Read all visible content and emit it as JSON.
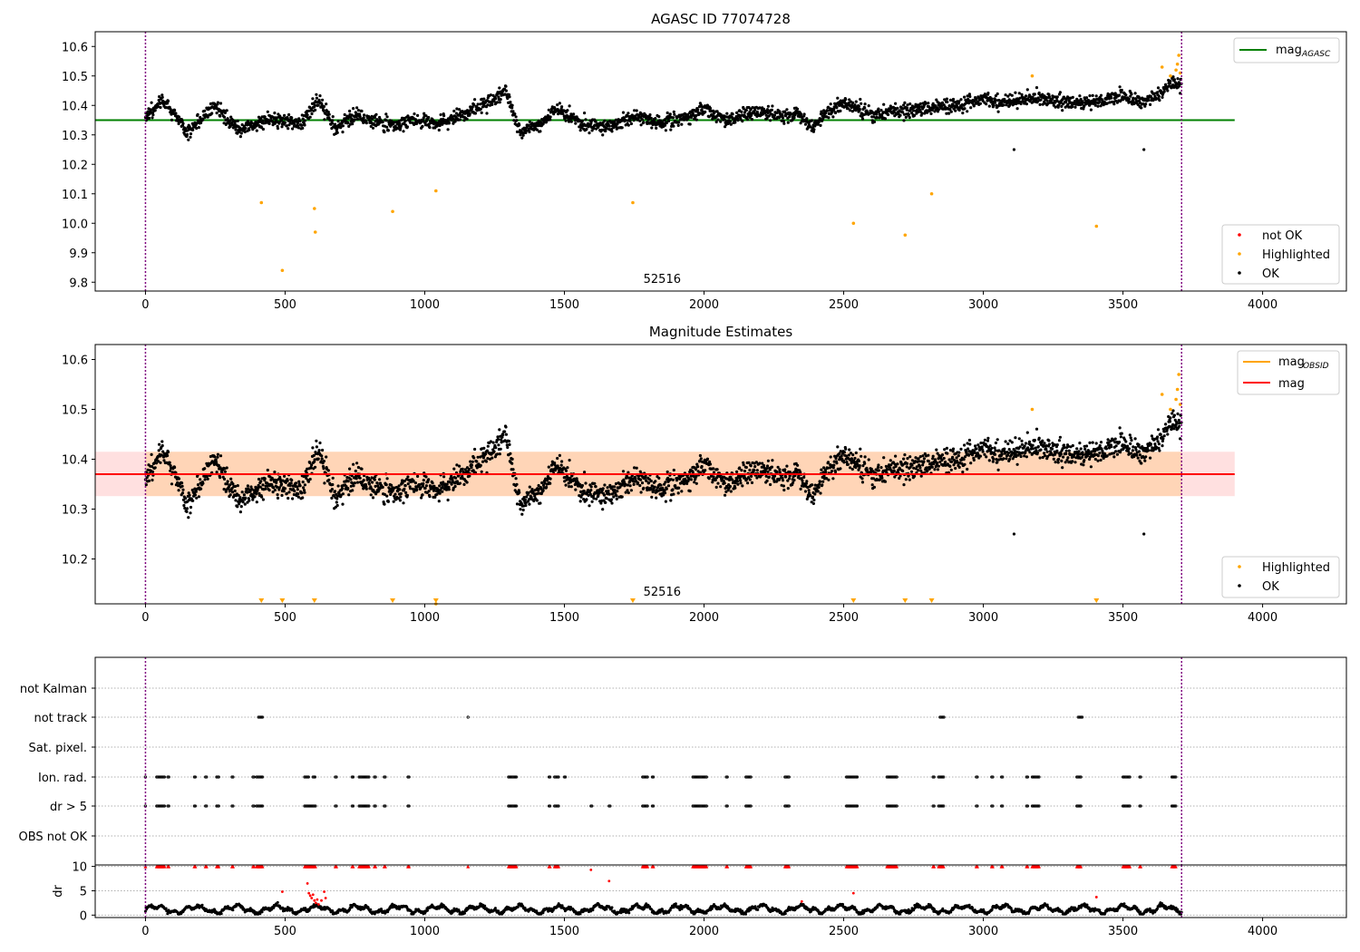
{
  "chart_data": [
    {
      "panel": "agasc",
      "type": "scatter",
      "title": "AGASC ID 77074728",
      "xlim": [
        -180,
        4300
      ],
      "ylim": [
        9.77,
        10.65
      ],
      "xticks": [
        0,
        500,
        1000,
        1500,
        2000,
        2500,
        3000,
        3500,
        4000
      ],
      "yticks": [
        9.8,
        9.9,
        10.0,
        10.1,
        10.2,
        10.3,
        10.4,
        10.5,
        10.6
      ],
      "yticklabels": [
        "9.8",
        "9.9",
        "10.0",
        "10.1",
        "10.2",
        "10.3",
        "10.4",
        "10.5",
        "10.6"
      ],
      "obsid_label": {
        "text": "52516",
        "x": 1850
      },
      "vlines": [
        0,
        3710
      ],
      "mag_line": {
        "label_main": "mag",
        "label_sub": "AGASC",
        "value": 10.35,
        "x_range": [
          -180,
          3900
        ],
        "color": "#008000"
      },
      "ok_trend": {
        "x": [
          0,
          60,
          150,
          250,
          330,
          450,
          560,
          620,
          680,
          760,
          870,
          960,
          1050,
          1140,
          1230,
          1290,
          1340,
          1420,
          1470,
          1560,
          1650,
          1760,
          1850,
          1950,
          2000,
          2080,
          2140,
          2200,
          2280,
          2340,
          2380,
          2440,
          2500,
          2600,
          2700,
          2800,
          2900,
          3000,
          3100,
          3200,
          3300,
          3400,
          3500,
          3560,
          3620,
          3660,
          3710
        ],
        "y": [
          10.36,
          10.42,
          10.31,
          10.4,
          10.32,
          10.35,
          10.34,
          10.42,
          10.32,
          10.37,
          10.33,
          10.35,
          10.34,
          10.37,
          10.41,
          10.45,
          10.31,
          10.34,
          10.39,
          10.34,
          10.33,
          10.36,
          10.34,
          10.36,
          10.39,
          10.35,
          10.37,
          10.38,
          10.36,
          10.37,
          10.33,
          10.37,
          10.41,
          10.37,
          10.38,
          10.39,
          10.4,
          10.42,
          10.41,
          10.43,
          10.41,
          10.41,
          10.43,
          10.41,
          10.43,
          10.47,
          10.48
        ]
      },
      "ok_outliers": [
        {
          "x": 3110,
          "y": 10.25
        },
        {
          "x": 3575,
          "y": 10.25
        }
      ],
      "highlighted": [
        {
          "x": 415,
          "y": 10.07
        },
        {
          "x": 490,
          "y": 9.84
        },
        {
          "x": 605,
          "y": 10.05
        },
        {
          "x": 608,
          "y": 9.97
        },
        {
          "x": 885,
          "y": 10.04
        },
        {
          "x": 1040,
          "y": 10.11
        },
        {
          "x": 1745,
          "y": 10.07
        },
        {
          "x": 2535,
          "y": 10.0
        },
        {
          "x": 2720,
          "y": 9.96
        },
        {
          "x": 2815,
          "y": 10.1
        },
        {
          "x": 3175,
          "y": 10.5
        },
        {
          "x": 3405,
          "y": 9.99
        },
        {
          "x": 3640,
          "y": 10.53
        },
        {
          "x": 3670,
          "y": 10.5
        },
        {
          "x": 3690,
          "y": 10.52
        },
        {
          "x": 3700,
          "y": 10.57
        },
        {
          "x": 3705,
          "y": 10.51
        },
        {
          "x": 3695,
          "y": 10.54
        }
      ],
      "legend_upper": [
        {
          "label_main": "mag",
          "label_sub": "AGASC",
          "color": "#008000",
          "marker": "line"
        }
      ],
      "legend_lower": [
        {
          "label": "not OK",
          "color": "#ff0000",
          "marker": "dot"
        },
        {
          "label": "Highlighted",
          "color": "#ffa500",
          "marker": "dot"
        },
        {
          "label": "OK",
          "color": "#000000",
          "marker": "dot"
        }
      ]
    },
    {
      "panel": "estimates",
      "type": "scatter",
      "title": "Magnitude Estimates",
      "xlim": [
        -180,
        4300
      ],
      "ylim": [
        10.11,
        10.63
      ],
      "xticks": [
        0,
        500,
        1000,
        1500,
        2000,
        2500,
        3000,
        3500,
        4000
      ],
      "yticks": [
        10.2,
        10.3,
        10.4,
        10.5,
        10.6
      ],
      "yticklabels": [
        "10.2",
        "10.3",
        "10.4",
        "10.5",
        "10.6"
      ],
      "obsid_label": {
        "text": "52516",
        "x": 1850
      },
      "vlines": [
        0,
        3710
      ],
      "mag_line": {
        "label": "mag",
        "value": 10.37,
        "band": [
          10.326,
          10.415
        ],
        "x_range": [
          -180,
          3900
        ],
        "color": "#ff0000"
      },
      "obsid_band_color": "#ffa500",
      "below_range_markers": [
        415,
        490,
        605,
        885,
        1040,
        1745,
        2535,
        2720,
        2815,
        3405
      ],
      "legend_upper": [
        {
          "label_main": "mag",
          "label_sub": "OBSID",
          "color": "#ffa500",
          "marker": "line"
        },
        {
          "label": "mag",
          "color": "#ff0000",
          "marker": "line"
        }
      ],
      "legend_lower": [
        {
          "label": "Highlighted",
          "color": "#ffa500",
          "marker": "dot"
        },
        {
          "label": "OK",
          "color": "#000000",
          "marker": "dot"
        }
      ]
    },
    {
      "panel": "flags",
      "type": "scatter",
      "xlim": [
        -180,
        4300
      ],
      "categories": [
        "not Kalman",
        "not track",
        "Sat. pixel.",
        "Ion. rad.",
        "dr > 5",
        "OBS not OK"
      ],
      "vlines": [
        0,
        3710
      ],
      "events": {
        "not track": [
          [
            405,
            420
          ],
          [
            1155,
            1158
          ],
          [
            2845,
            2860
          ],
          [
            3340,
            3355
          ]
        ],
        "Ion. rad.": [
          [
            0,
            2
          ],
          [
            40,
            70
          ],
          [
            80,
            84
          ],
          [
            175,
            180
          ],
          [
            215,
            220
          ],
          [
            255,
            262
          ],
          [
            310,
            316
          ],
          [
            385,
            390
          ],
          [
            398,
            420
          ],
          [
            570,
            585
          ],
          [
            600,
            610
          ],
          [
            680,
            684
          ],
          [
            740,
            744
          ],
          [
            765,
            800
          ],
          [
            820,
            826
          ],
          [
            855,
            860
          ],
          [
            940,
            944
          ],
          [
            1300,
            1330
          ],
          [
            1445,
            1450
          ],
          [
            1465,
            1480
          ],
          [
            1500,
            1504
          ],
          [
            1780,
            1800
          ],
          [
            1815,
            1820
          ],
          [
            1960,
            2010
          ],
          [
            2080,
            2084
          ],
          [
            2150,
            2170
          ],
          [
            2290,
            2305
          ],
          [
            2510,
            2550
          ],
          [
            2655,
            2690
          ],
          [
            2820,
            2824
          ],
          [
            2840,
            2860
          ],
          [
            2975,
            2979
          ],
          [
            3030,
            3034
          ],
          [
            3065,
            3069
          ],
          [
            3155,
            3160
          ],
          [
            3175,
            3200
          ],
          [
            3335,
            3350
          ],
          [
            3500,
            3525
          ],
          [
            3560,
            3564
          ],
          [
            3675,
            3690
          ]
        ],
        "dr > 5": [
          [
            0,
            2
          ],
          [
            40,
            70
          ],
          [
            80,
            84
          ],
          [
            175,
            180
          ],
          [
            215,
            220
          ],
          [
            255,
            262
          ],
          [
            310,
            316
          ],
          [
            385,
            390
          ],
          [
            398,
            420
          ],
          [
            570,
            610
          ],
          [
            680,
            684
          ],
          [
            740,
            744
          ],
          [
            765,
            800
          ],
          [
            820,
            826
          ],
          [
            855,
            860
          ],
          [
            940,
            944
          ],
          [
            1300,
            1330
          ],
          [
            1445,
            1450
          ],
          [
            1465,
            1480
          ],
          [
            1595,
            1599
          ],
          [
            1660,
            1664
          ],
          [
            1780,
            1800
          ],
          [
            1815,
            1820
          ],
          [
            1960,
            2010
          ],
          [
            2080,
            2084
          ],
          [
            2150,
            2170
          ],
          [
            2290,
            2305
          ],
          [
            2510,
            2550
          ],
          [
            2655,
            2690
          ],
          [
            2820,
            2824
          ],
          [
            2840,
            2860
          ],
          [
            2975,
            2979
          ],
          [
            3030,
            3034
          ],
          [
            3065,
            3069
          ],
          [
            3155,
            3160
          ],
          [
            3175,
            3200
          ],
          [
            3335,
            3350
          ],
          [
            3500,
            3525
          ],
          [
            3560,
            3564
          ],
          [
            3675,
            3690
          ]
        ]
      }
    },
    {
      "panel": "dr",
      "type": "scatter",
      "ylabel": "dr",
      "xlim": [
        -180,
        4300
      ],
      "ylim": [
        -0.5,
        10.3
      ],
      "xticks": [
        0,
        500,
        1000,
        1500,
        2000,
        2500,
        3000,
        3500,
        4000
      ],
      "yticks": [
        0,
        5,
        10
      ],
      "vlines": [
        0,
        3710
      ],
      "capped_value": 10,
      "capped_ranges": [
        [
          0,
          2
        ],
        [
          40,
          70
        ],
        [
          80,
          84
        ],
        [
          175,
          180
        ],
        [
          215,
          220
        ],
        [
          255,
          262
        ],
        [
          310,
          316
        ],
        [
          385,
          390
        ],
        [
          398,
          420
        ],
        [
          570,
          610
        ],
        [
          680,
          684
        ],
        [
          740,
          744
        ],
        [
          765,
          800
        ],
        [
          820,
          826
        ],
        [
          855,
          860
        ],
        [
          940,
          944
        ],
        [
          1155,
          1158
        ],
        [
          1300,
          1330
        ],
        [
          1445,
          1450
        ],
        [
          1465,
          1480
        ],
        [
          1780,
          1800
        ],
        [
          1815,
          1820
        ],
        [
          1960,
          2010
        ],
        [
          2080,
          2084
        ],
        [
          2150,
          2170
        ],
        [
          2290,
          2305
        ],
        [
          2510,
          2550
        ],
        [
          2655,
          2690
        ],
        [
          2820,
          2824
        ],
        [
          2840,
          2860
        ],
        [
          2975,
          2979
        ],
        [
          3030,
          3034
        ],
        [
          3065,
          3069
        ],
        [
          3155,
          3160
        ],
        [
          3175,
          3200
        ],
        [
          3335,
          3350
        ],
        [
          3500,
          3525
        ],
        [
          3560,
          3564
        ],
        [
          3675,
          3690
        ]
      ],
      "red_points": [
        {
          "x": 490,
          "y": 4.8
        },
        {
          "x": 580,
          "y": 6.5
        },
        {
          "x": 585,
          "y": 4.5
        },
        {
          "x": 590,
          "y": 4.0
        },
        {
          "x": 595,
          "y": 3.5
        },
        {
          "x": 600,
          "y": 4.2
        },
        {
          "x": 605,
          "y": 3.0
        },
        {
          "x": 610,
          "y": 2.5
        },
        {
          "x": 615,
          "y": 3.2
        },
        {
          "x": 620,
          "y": 2.2
        },
        {
          "x": 630,
          "y": 3.0
        },
        {
          "x": 640,
          "y": 4.8
        },
        {
          "x": 645,
          "y": 3.5
        },
        {
          "x": 1595,
          "y": 9.3
        },
        {
          "x": 1660,
          "y": 7.0
        },
        {
          "x": 2350,
          "y": 2.8
        },
        {
          "x": 2535,
          "y": 4.5
        },
        {
          "x": 3405,
          "y": 3.7
        }
      ]
    }
  ]
}
